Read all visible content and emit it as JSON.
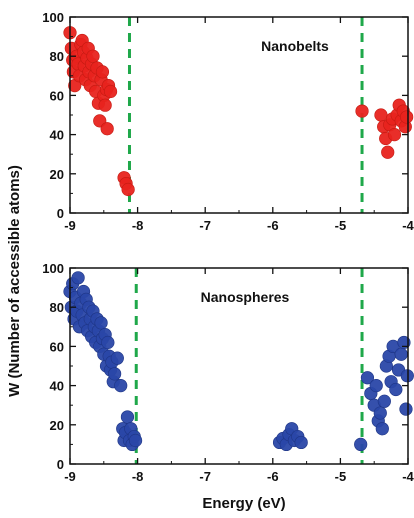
{
  "figure": {
    "ylabel": "W (Number of accessible atoms)",
    "xlabel": "Energy (eV)"
  },
  "chart_data": [
    {
      "type": "scatter",
      "annotation": "Nanobelts",
      "xlim": [
        -9,
        -4
      ],
      "ylim": [
        0,
        100
      ],
      "xticks": [
        "-9",
        "-8",
        "-7",
        "-6",
        "-5",
        "-4"
      ],
      "yticks": [
        "0",
        "20",
        "40",
        "60",
        "80",
        "100"
      ],
      "vlines": [
        -8.12,
        -4.68
      ],
      "point_color": "#e8231d",
      "point_stroke": "#c41a12",
      "line_color": "#1fa84a",
      "points": [
        [
          -9.0,
          92
        ],
        [
          -8.98,
          84
        ],
        [
          -8.96,
          78
        ],
        [
          -8.95,
          72
        ],
        [
          -8.93,
          65
        ],
        [
          -8.9,
          80
        ],
        [
          -8.88,
          76
        ],
        [
          -8.86,
          70
        ],
        [
          -8.84,
          86
        ],
        [
          -8.82,
          88
        ],
        [
          -8.8,
          82
        ],
        [
          -8.79,
          75
        ],
        [
          -8.77,
          68
        ],
        [
          -8.75,
          79
        ],
        [
          -8.73,
          84
        ],
        [
          -8.72,
          72
        ],
        [
          -8.7,
          65
        ],
        [
          -8.68,
          76
        ],
        [
          -8.66,
          80
        ],
        [
          -8.64,
          70
        ],
        [
          -8.62,
          62
        ],
        [
          -8.6,
          74
        ],
        [
          -8.58,
          56
        ],
        [
          -8.56,
          47
        ],
        [
          -8.54,
          68
        ],
        [
          -8.52,
          72
        ],
        [
          -8.5,
          60
        ],
        [
          -8.48,
          55
        ],
        [
          -8.46,
          63
        ],
        [
          -8.43,
          65
        ],
        [
          -8.4,
          62
        ],
        [
          -8.45,
          43
        ],
        [
          -8.2,
          18
        ],
        [
          -8.17,
          15
        ],
        [
          -8.14,
          12
        ],
        [
          -4.68,
          52
        ],
        [
          -4.4,
          50
        ],
        [
          -4.36,
          44
        ],
        [
          -4.33,
          38
        ],
        [
          -4.3,
          31
        ],
        [
          -4.27,
          45
        ],
        [
          -4.23,
          48
        ],
        [
          -4.2,
          40
        ],
        [
          -4.16,
          50
        ],
        [
          -4.13,
          55
        ],
        [
          -4.1,
          47
        ],
        [
          -4.07,
          52
        ],
        [
          -4.04,
          44
        ],
        [
          -4.02,
          49
        ]
      ]
    },
    {
      "type": "scatter",
      "annotation": "Nanospheres",
      "xlim": [
        -9,
        -4
      ],
      "ylim": [
        0,
        100
      ],
      "xticks": [
        "-9",
        "-8",
        "-7",
        "-6",
        "-5",
        "-4"
      ],
      "yticks": [
        "0",
        "20",
        "40",
        "60",
        "80",
        "100"
      ],
      "vlines": [
        -8.02,
        -4.68
      ],
      "point_color": "#2a47a8",
      "point_stroke": "#1e3585",
      "line_color": "#1fa84a",
      "points": [
        [
          -9.0,
          88
        ],
        [
          -8.98,
          80
        ],
        [
          -8.96,
          92
        ],
        [
          -8.94,
          74
        ],
        [
          -8.92,
          85
        ],
        [
          -8.9,
          78
        ],
        [
          -8.88,
          95
        ],
        [
          -8.86,
          70
        ],
        [
          -8.84,
          82
        ],
        [
          -8.82,
          76
        ],
        [
          -8.8,
          88
        ],
        [
          -8.78,
          72
        ],
        [
          -8.76,
          84
        ],
        [
          -8.74,
          68
        ],
        [
          -8.72,
          80
        ],
        [
          -8.7,
          74
        ],
        [
          -8.68,
          65
        ],
        [
          -8.66,
          78
        ],
        [
          -8.64,
          70
        ],
        [
          -8.62,
          62
        ],
        [
          -8.6,
          74
        ],
        [
          -8.58,
          68
        ],
        [
          -8.56,
          60
        ],
        [
          -8.54,
          72
        ],
        [
          -8.52,
          64
        ],
        [
          -8.5,
          56
        ],
        [
          -8.48,
          66
        ],
        [
          -8.46,
          50
        ],
        [
          -8.44,
          62
        ],
        [
          -8.42,
          55
        ],
        [
          -8.4,
          48
        ],
        [
          -8.38,
          52
        ],
        [
          -8.36,
          42
        ],
        [
          -8.34,
          46
        ],
        [
          -8.3,
          54
        ],
        [
          -8.25,
          40
        ],
        [
          -8.22,
          18
        ],
        [
          -8.2,
          12
        ],
        [
          -8.18,
          16
        ],
        [
          -8.15,
          24
        ],
        [
          -8.12,
          12
        ],
        [
          -8.1,
          18
        ],
        [
          -8.08,
          10
        ],
        [
          -8.05,
          14
        ],
        [
          -8.03,
          12
        ],
        [
          -5.9,
          11
        ],
        [
          -5.85,
          13
        ],
        [
          -5.8,
          10
        ],
        [
          -5.76,
          15
        ],
        [
          -5.72,
          18
        ],
        [
          -5.68,
          12
        ],
        [
          -5.63,
          14
        ],
        [
          -5.58,
          11
        ],
        [
          -4.7,
          10
        ],
        [
          -4.6,
          44
        ],
        [
          -4.55,
          36
        ],
        [
          -4.5,
          30
        ],
        [
          -4.47,
          40
        ],
        [
          -4.44,
          22
        ],
        [
          -4.41,
          26
        ],
        [
          -4.38,
          18
        ],
        [
          -4.35,
          32
        ],
        [
          -4.32,
          50
        ],
        [
          -4.28,
          55
        ],
        [
          -4.25,
          42
        ],
        [
          -4.22,
          60
        ],
        [
          -4.18,
          38
        ],
        [
          -4.14,
          48
        ],
        [
          -4.1,
          56
        ],
        [
          -4.06,
          62
        ],
        [
          -4.03,
          28
        ],
        [
          -4.01,
          45
        ]
      ]
    }
  ]
}
